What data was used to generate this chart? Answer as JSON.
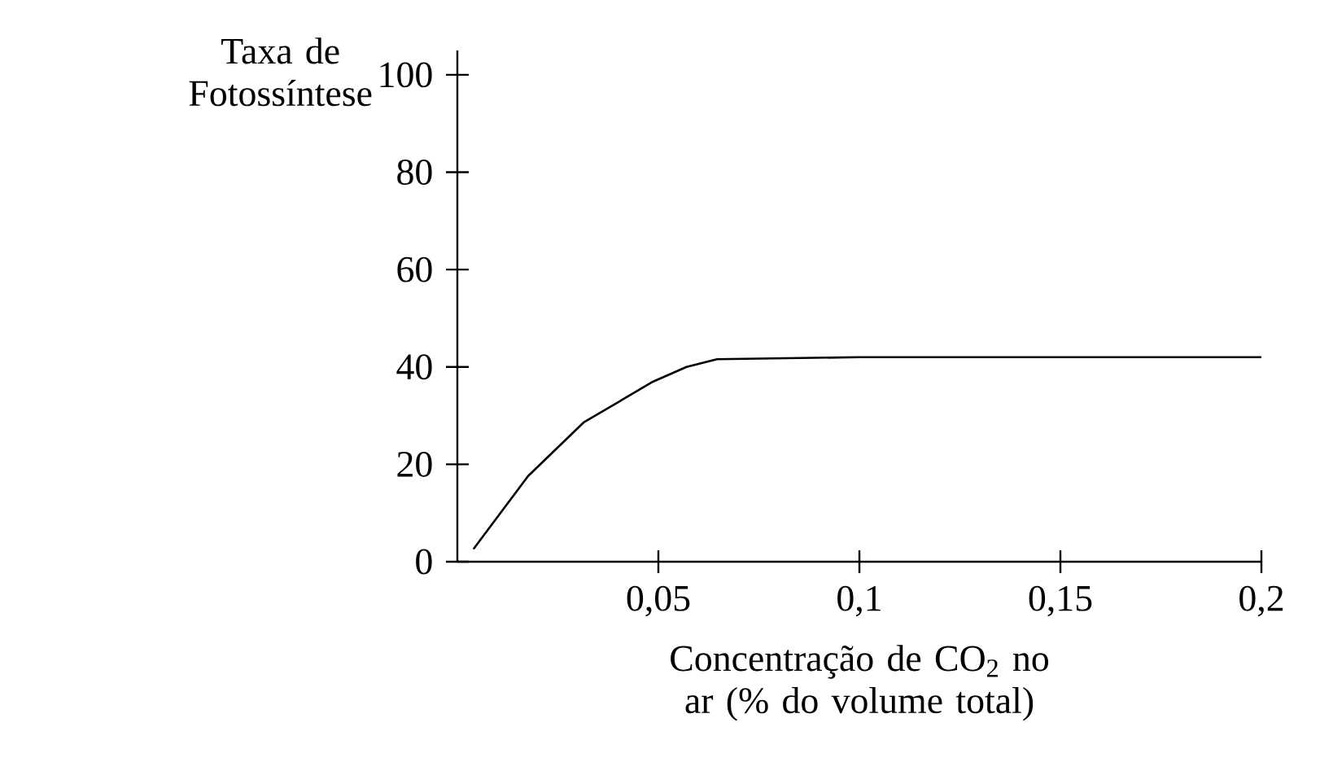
{
  "chart_data": {
    "type": "line",
    "xlabel": "Concentração de CO$_{2}$ no ar (% do volume total)",
    "ylabel": "Taxa de Fotossíntese",
    "x": [
      0.004,
      0.0176,
      0.0314,
      0.0487,
      0.057,
      0.0646,
      0.1,
      0.15,
      0.2
    ],
    "series": [
      {
        "color": "#000000",
        "values": [
          2.6,
          17.6,
          28.6,
          37,
          40,
          41.6,
          42,
          42,
          42
        ]
      }
    ],
    "xlim": [
      0,
      0.2
    ],
    "ylim": [
      0,
      105
    ],
    "xticks": [
      {
        "value": 0.05,
        "label": "0,05"
      },
      {
        "value": 0.1,
        "label": "0,1"
      },
      {
        "value": 0.15,
        "label": "0,15"
      },
      {
        "value": 0.2,
        "label": "0,2"
      }
    ],
    "yticks": [
      0,
      20,
      40,
      60,
      80,
      100
    ],
    "grid": false,
    "marker": "none",
    "line_style": "solid"
  }
}
